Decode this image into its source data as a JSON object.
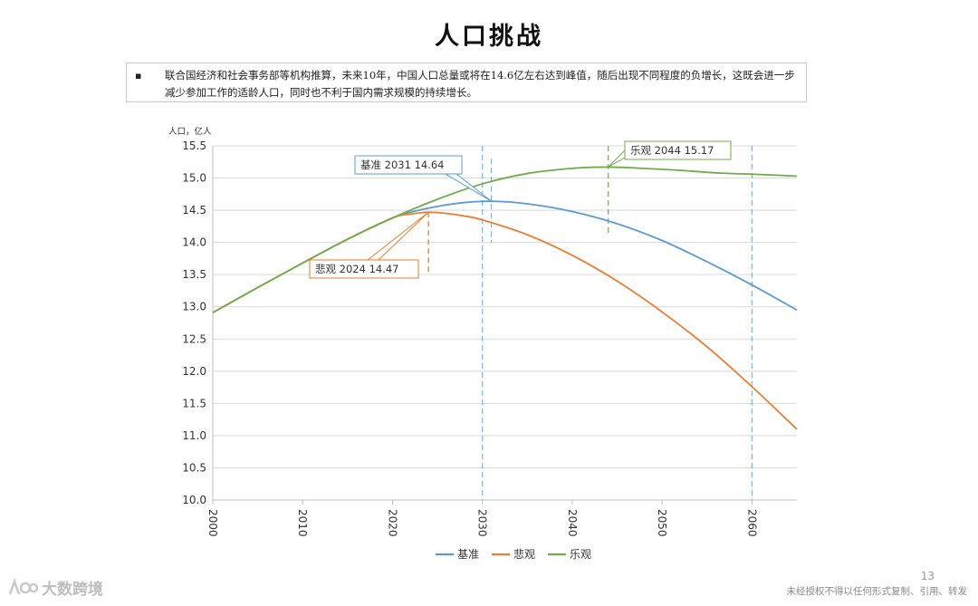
{
  "page": {
    "title": "人口挑战",
    "note": "联合国经济和社会事务部等机构推算，未来10年，中国人口总量或将在14.6亿左右达到峰值，随后出现不同程度的负增长，这既会进一步减少参加工作的适龄人口，同时也不利于国内需求规模的持续增长。",
    "page_number": "13",
    "footer_notice": "未经授权不得以任何形式复制、引用、转发",
    "watermark_text": "大数跨境"
  },
  "colors": {
    "baseline": "#5b9bd5",
    "pessimistic": "#ed7d31",
    "optimistic": "#70ad47",
    "grid": "#d9d9d9"
  },
  "chart_data": {
    "type": "line",
    "title": "",
    "ylabel": "人口，亿人",
    "xlabel": "",
    "xlim": [
      2000,
      2065
    ],
    "ylim": [
      10.0,
      15.5
    ],
    "y_ticks": [
      "10.0",
      "10.5",
      "11.0",
      "11.5",
      "12.0",
      "12.5",
      "13.0",
      "13.5",
      "14.0",
      "14.5",
      "15.0",
      "15.5"
    ],
    "x_ticks": [
      "2000",
      "2010",
      "2020",
      "2030",
      "2040",
      "2050",
      "2060"
    ],
    "grid": true,
    "legend_position": "bottom",
    "series": [
      {
        "name": "基准",
        "key": "baseline",
        "x": [
          2000,
          2005,
          2010,
          2015,
          2020,
          2022,
          2025,
          2028,
          2031,
          2035,
          2040,
          2045,
          2050,
          2055,
          2060,
          2065
        ],
        "y": [
          12.91,
          13.3,
          13.68,
          14.05,
          14.38,
          14.47,
          14.56,
          14.62,
          14.64,
          14.6,
          14.48,
          14.29,
          14.03,
          13.7,
          13.34,
          12.95
        ]
      },
      {
        "name": "悲观",
        "key": "pessimistic",
        "x": [
          2000,
          2005,
          2010,
          2015,
          2020,
          2022,
          2024,
          2026,
          2028,
          2030,
          2035,
          2040,
          2045,
          2050,
          2055,
          2060,
          2065
        ],
        "y": [
          12.91,
          13.3,
          13.68,
          14.05,
          14.38,
          14.44,
          14.47,
          14.45,
          14.41,
          14.35,
          14.12,
          13.8,
          13.4,
          12.92,
          12.38,
          11.76,
          11.1
        ]
      },
      {
        "name": "乐观",
        "key": "optimistic",
        "x": [
          2000,
          2005,
          2010,
          2015,
          2020,
          2025,
          2030,
          2035,
          2040,
          2044,
          2048,
          2052,
          2056,
          2060,
          2065
        ],
        "y": [
          12.91,
          13.3,
          13.68,
          14.05,
          14.38,
          14.67,
          14.91,
          15.07,
          15.15,
          15.17,
          15.15,
          15.12,
          15.08,
          15.06,
          15.03
        ]
      }
    ],
    "annotations": [
      {
        "series": "baseline",
        "text": "基准 2031 14.64",
        "x": 2031,
        "y": 14.64
      },
      {
        "series": "pessimistic",
        "text": "悲观 2024 14.47",
        "x": 2024,
        "y": 14.47
      },
      {
        "series": "optimistic",
        "text": "乐观 2044 15.17",
        "x": 2044,
        "y": 15.17
      }
    ],
    "reference_lines": [
      {
        "series": "baseline",
        "x": 2030,
        "style": "dashed"
      },
      {
        "series": "baseline",
        "x": 2031,
        "style": "dashed"
      },
      {
        "series": "baseline",
        "x": 2060,
        "style": "dashed"
      },
      {
        "series": "pessimistic",
        "x": 2024,
        "style": "dashed"
      },
      {
        "series": "optimistic",
        "x": 2044,
        "style": "dashed"
      }
    ]
  }
}
